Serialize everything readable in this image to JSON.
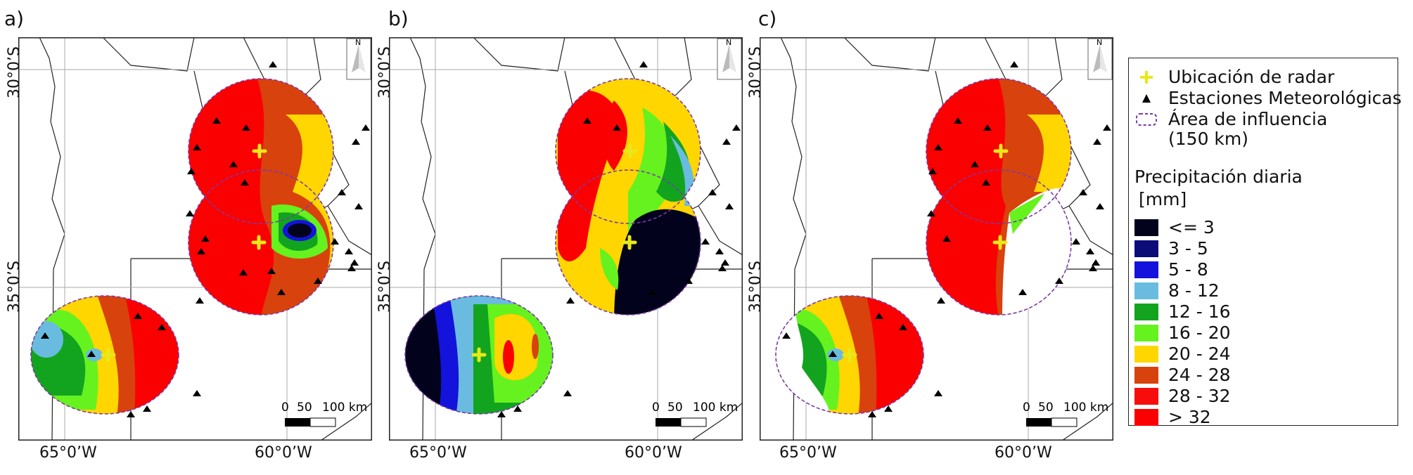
{
  "panels": [
    {
      "label": "a)",
      "lat_ticks": [
        "30°0’S",
        "35°0’S"
      ],
      "lon_ticks": [
        "65°0’W",
        "60°0’W"
      ],
      "scale": {
        "zero": "0",
        "mid": "50",
        "end": "100 km"
      },
      "north": "N"
    },
    {
      "label": "b)",
      "lat_ticks": [
        "30°0’S",
        "35°0’S"
      ],
      "lon_ticks": [
        "65°0’W",
        "60°0’W"
      ],
      "scale": {
        "zero": "0",
        "mid": "50",
        "end": "100 km"
      },
      "north": "N"
    },
    {
      "label": "c)",
      "lat_ticks": [
        "30°0’S",
        "35°0’S"
      ],
      "lon_ticks": [
        "65°0’W",
        "60°0’W"
      ],
      "scale": {
        "zero": "0",
        "mid": "50",
        "end": "100 km"
      },
      "north": "N"
    }
  ],
  "legend": {
    "radar": "Ubicación de radar",
    "stations": "Estaciones Meteorológicas",
    "area_line1": "Área de influencia",
    "area_line2": "(150 km)",
    "title_line1": "Precipitación diaria",
    "title_line2": "[mm]",
    "classes": [
      {
        "label": "<= 3",
        "color": "#02021c"
      },
      {
        "label": "3 - 5",
        "color": "#0b0b7a"
      },
      {
        "label": "5 - 8",
        "color": "#1313dc"
      },
      {
        "label": "8 - 12",
        "color": "#69bce0"
      },
      {
        "label": "12 - 16",
        "color": "#12a41e"
      },
      {
        "label": "16 - 20",
        "color": "#66f21e"
      },
      {
        "label": "20 - 24",
        "color": "#ffd600"
      },
      {
        "label": "24 - 28",
        "color": "#d8420c"
      },
      {
        "label": "28 - 32",
        "color": "#f80d0d"
      },
      {
        "label": "> 32",
        "color": "#fb0000"
      }
    ]
  }
}
